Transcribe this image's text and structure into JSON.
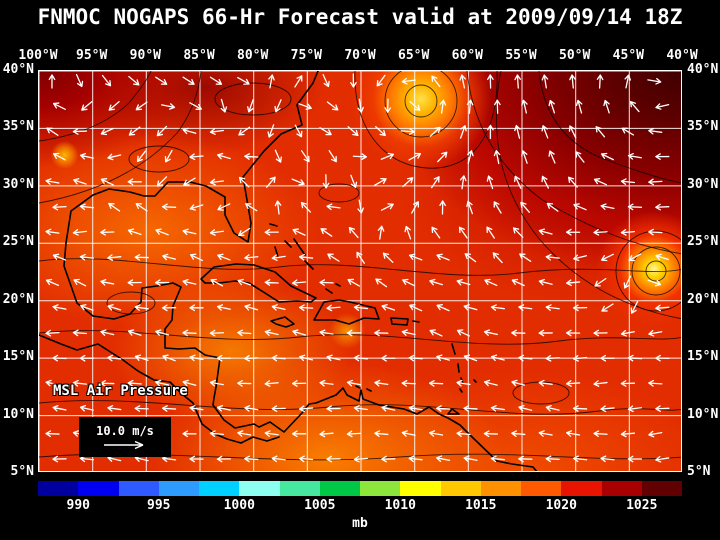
{
  "title": "FNMOC NOGAPS 66-Hr Forecast valid at 2009/09/14 18Z",
  "map": {
    "field_label": "MSL Air Pressure",
    "wind_scale_label": "10.0 m/s"
  },
  "axes": {
    "top_longitude": [
      "100°W",
      "95°W",
      "90°W",
      "85°W",
      "80°W",
      "75°W",
      "70°W",
      "65°W",
      "60°W",
      "55°W",
      "50°W",
      "45°W",
      "40°W"
    ],
    "left_latitude": [
      "40°N",
      "35°N",
      "30°N",
      "25°N",
      "20°N",
      "15°N",
      "10°N",
      "5°N"
    ],
    "right_latitude": [
      "40°N",
      "35°N",
      "30°N",
      "25°N",
      "20°N",
      "15°N",
      "10°N",
      "5°N"
    ]
  },
  "colorbar": {
    "unit_label": "mb",
    "ticks": [
      "990",
      "995",
      "1000",
      "1005",
      "1010",
      "1015",
      "1020",
      "1025"
    ],
    "segment_colors": [
      "#00009e",
      "#0000f0",
      "#2e5bff",
      "#2e9bff",
      "#00d0ff",
      "#8cfff0",
      "#46e8a0",
      "#00c846",
      "#8ce63c",
      "#ffff00",
      "#ffc800",
      "#ff9100",
      "#ff5a00",
      "#e81400",
      "#a80000",
      "#600000"
    ]
  },
  "style_colors": {
    "background": "#000000",
    "text": "#ffffff",
    "grid": "#ffffff",
    "coastline": "#000000",
    "wind_arrow": "#ffffff",
    "field_base": "#e22d00"
  }
}
